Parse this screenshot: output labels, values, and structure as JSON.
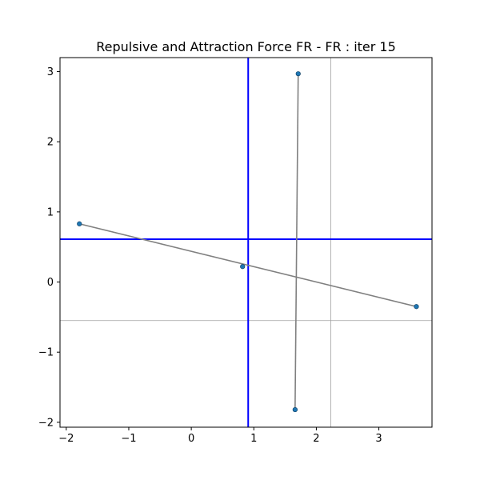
{
  "chart_data": {
    "type": "scatter",
    "title": "Repulsive and Attraction Force FR - FR : iter 15",
    "xlabel": "",
    "ylabel": "",
    "xlim": [
      -2.1,
      3.85
    ],
    "ylim": [
      -2.07,
      3.2
    ],
    "x_ticks": [
      -2,
      -1,
      0,
      1,
      2,
      3
    ],
    "y_ticks": [
      -2,
      -1,
      0,
      1,
      2,
      3
    ],
    "x_tick_labels": [
      "−2",
      "−1",
      "0",
      "1",
      "2",
      "3"
    ],
    "y_tick_labels": [
      "−2",
      "−1",
      "0",
      "1",
      "2",
      "3"
    ],
    "grid": false,
    "nodes": [
      {
        "x": -1.79,
        "y": 0.83
      },
      {
        "x": 1.71,
        "y": 2.97
      },
      {
        "x": 0.82,
        "y": 0.22
      },
      {
        "x": 3.6,
        "y": -0.35
      },
      {
        "x": 1.66,
        "y": -1.82
      }
    ],
    "edges": [
      [
        0,
        3
      ],
      [
        1,
        4
      ]
    ],
    "reference_lines": {
      "blue_vertical_x": 0.91,
      "blue_horizontal_y": 0.61,
      "gray_vertical_x": 2.23,
      "gray_horizontal_y": -0.55
    },
    "colors": {
      "node": "#1f77b4",
      "node_edge": "#0d3b5e",
      "edge": "#808080",
      "blue_line": "#0000ff",
      "gray_line": "#a0a0a0",
      "axes": "#000000"
    }
  }
}
